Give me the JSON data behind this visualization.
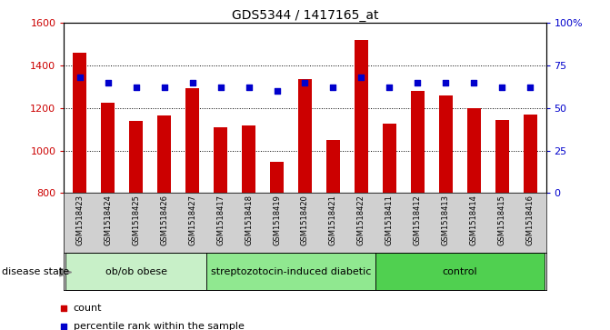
{
  "title": "GDS5344 / 1417165_at",
  "samples": [
    "GSM1518423",
    "GSM1518424",
    "GSM1518425",
    "GSM1518426",
    "GSM1518427",
    "GSM1518417",
    "GSM1518418",
    "GSM1518419",
    "GSM1518420",
    "GSM1518421",
    "GSM1518422",
    "GSM1518411",
    "GSM1518412",
    "GSM1518413",
    "GSM1518414",
    "GSM1518415",
    "GSM1518416"
  ],
  "counts": [
    1460,
    1225,
    1140,
    1165,
    1295,
    1110,
    1120,
    945,
    1335,
    1050,
    1520,
    1125,
    1280,
    1260,
    1200,
    1145,
    1170
  ],
  "percentiles": [
    68,
    65,
    62,
    62,
    65,
    62,
    62,
    60,
    65,
    62,
    68,
    62,
    65,
    65,
    65,
    62,
    62
  ],
  "groups": [
    {
      "label": "ob/ob obese",
      "start": 0,
      "end": 5,
      "color": "#c8f0c8"
    },
    {
      "label": "streptozotocin-induced diabetic",
      "start": 5,
      "end": 11,
      "color": "#90e890"
    },
    {
      "label": "control",
      "start": 11,
      "end": 17,
      "color": "#50d050"
    }
  ],
  "bar_color": "#cc0000",
  "dot_color": "#0000cc",
  "ylim_left": [
    800,
    1600
  ],
  "ylim_right": [
    0,
    100
  ],
  "yticks_left": [
    800,
    1000,
    1200,
    1400,
    1600
  ],
  "yticks_right": [
    0,
    25,
    50,
    75,
    100
  ],
  "yticklabels_right": [
    "0",
    "25",
    "50",
    "75",
    "100%"
  ],
  "grid_values": [
    1000,
    1200,
    1400
  ],
  "xtick_bg_color": "#d0d0d0",
  "plot_bg": "#ffffff",
  "legend_count_label": "count",
  "legend_pct_label": "percentile rank within the sample"
}
